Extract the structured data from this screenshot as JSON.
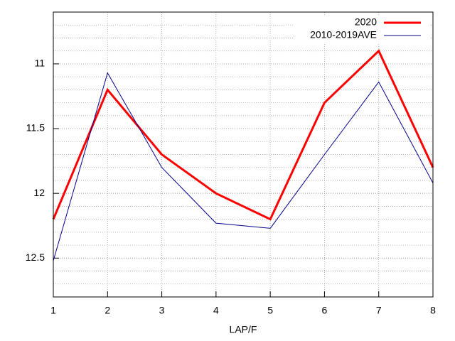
{
  "chart_data": {
    "type": "line",
    "xlabel": "LAP/F",
    "x": [
      1,
      2,
      3,
      4,
      5,
      6,
      7,
      8
    ],
    "series": [
      {
        "name": "2020",
        "color": "#ff0000",
        "values": [
          12.2,
          11.2,
          11.7,
          12.0,
          12.2,
          11.3,
          10.9,
          11.8
        ]
      },
      {
        "name": "2010-2019AVE",
        "color": "#00008b",
        "values": [
          12.52,
          11.07,
          11.8,
          12.23,
          12.27,
          11.7,
          11.14,
          11.92
        ]
      }
    ],
    "xlim": [
      1,
      8
    ],
    "xticks": [
      1,
      2,
      3,
      4,
      5,
      6,
      7,
      8
    ],
    "ylim": [
      12.8,
      10.6
    ],
    "yticks": [
      11,
      11.5,
      12,
      12.5
    ],
    "grid": true,
    "minor_grid_divisions": 5,
    "legend": "top-right"
  }
}
